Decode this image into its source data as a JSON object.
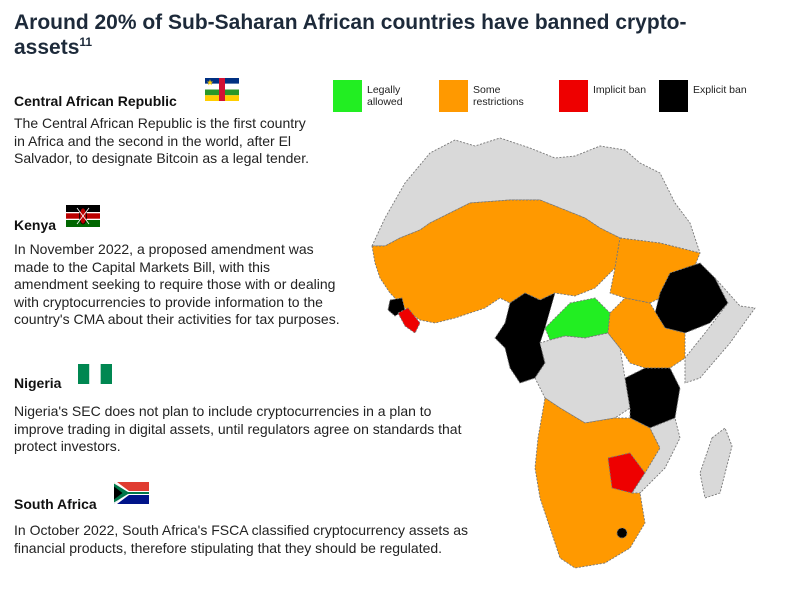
{
  "title": {
    "text": "Around 20% of Sub-Saharan African countries have banned crypto-assets",
    "footnote": "11"
  },
  "entries": [
    {
      "country": "Central African Republic",
      "flag": "central-african-republic-flag",
      "text": "The Central African Republic is the first country in Africa and the second in the world, after El Salvador, to designate Bitcoin as a legal tender."
    },
    {
      "country": "Kenya",
      "flag": "kenya-flag",
      "text": "In November 2022, a proposed amendment was made to the Capital Markets Bill, with this amendment seeking to require those with or dealing with cryptocurrencies to provide information to the country's CMA about their activities for tax purposes."
    },
    {
      "country": "Nigeria",
      "flag": "nigeria-flag",
      "text": "Nigeria's SEC does not plan to include cryptocurrencies in a plan to improve trading in digital assets, until regulators agree on standards that protect investors."
    },
    {
      "country": "South Africa",
      "flag": "south-africa-flag",
      "text": "In October 2022, South Africa's FSCA classified cryptocurrency assets as financial products, therefore stipulating that they should be regulated."
    }
  ],
  "legend": [
    {
      "label": "Legally\nallowed",
      "color": "#22ee22"
    },
    {
      "label": "Some\nrestrictions",
      "color": "#ff9900"
    },
    {
      "label": "Implicit ban",
      "color": "#ee0000"
    },
    {
      "label": "Explicit ban",
      "color": "#000000"
    }
  ],
  "colors": {
    "no_data": "#d9d9d9",
    "legally_allowed": "#22ee22",
    "some_restrictions": "#ff9900",
    "implicit_ban": "#ee0000",
    "explicit_ban": "#000000",
    "border": "#777777"
  }
}
